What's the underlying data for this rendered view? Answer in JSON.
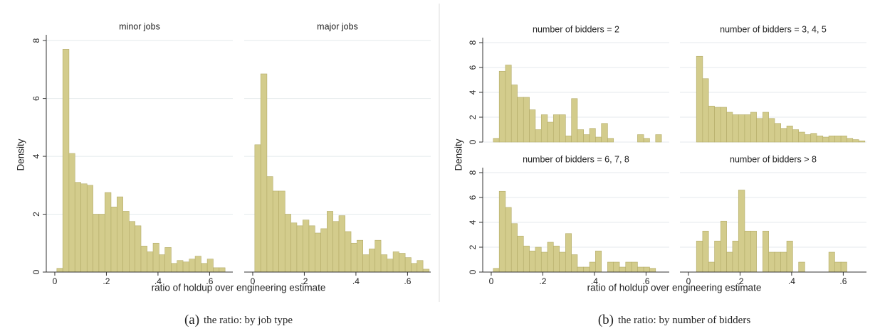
{
  "panels": [
    {
      "ylabel": "Density",
      "xlabel": "ratio of holdup over engineering estimate",
      "caption_tag": "(a)",
      "caption": "the ratio: by job type"
    },
    {
      "ylabel": "Density",
      "xlabel": "ratio of holdup over engineering estimate",
      "caption_tag": "(b)",
      "caption": "the ratio: by number of bidders"
    }
  ],
  "chart_data": [
    {
      "type": "histogram",
      "title": "minor jobs",
      "color": "#d3cc8c",
      "grid": true,
      "bins": [
        0.008,
        0.031,
        0.055,
        0.078,
        0.101,
        0.125,
        0.148,
        0.171,
        0.194,
        0.218,
        0.241,
        0.264,
        0.288,
        0.311,
        0.334,
        0.358,
        0.381,
        0.404,
        0.427,
        0.451,
        0.474,
        0.497,
        0.521,
        0.544,
        0.567,
        0.591,
        0.614,
        0.637,
        0.66
      ],
      "values": [
        0.13,
        7.7,
        4.1,
        3.1,
        3.05,
        3.0,
        2.0,
        2.0,
        2.75,
        2.25,
        2.6,
        2.1,
        1.75,
        1.6,
        0.9,
        0.7,
        1.0,
        0.6,
        0.85,
        0.3,
        0.4,
        0.35,
        0.45,
        0.55,
        0.3,
        0.45,
        0.15,
        0.15
      ],
      "xlim": [
        -0.033,
        0.69
      ],
      "ylim": [
        0,
        8.2
      ],
      "yticks": [
        0,
        2,
        4,
        6,
        8
      ],
      "xticks": [
        0,
        {
          "value": 0.2,
          "label": ".2"
        },
        {
          "value": 0.4,
          "label": ".4"
        },
        {
          "value": 0.6,
          "label": ".6"
        }
      ]
    },
    {
      "type": "histogram",
      "title": "major jobs",
      "color": "#d3cc8c",
      "grid": true,
      "bins": [
        0.008,
        0.031,
        0.055,
        0.078,
        0.101,
        0.125,
        0.148,
        0.171,
        0.194,
        0.218,
        0.241,
        0.264,
        0.288,
        0.311,
        0.334,
        0.358,
        0.381,
        0.404,
        0.427,
        0.451,
        0.474,
        0.497,
        0.521,
        0.544,
        0.567,
        0.591,
        0.614,
        0.637,
        0.66,
        0.684
      ],
      "values": [
        4.4,
        6.85,
        3.3,
        2.8,
        2.8,
        2.0,
        1.7,
        1.6,
        1.8,
        1.6,
        1.35,
        1.5,
        2.1,
        1.75,
        1.95,
        1.4,
        1.0,
        1.1,
        0.6,
        0.8,
        1.1,
        0.6,
        0.45,
        0.7,
        0.65,
        0.5,
        0.3,
        0.4,
        0.1
      ],
      "xlim": [
        -0.033,
        0.69
      ],
      "ylim": [
        0,
        8.2
      ],
      "yticks": [
        0,
        2,
        4,
        6,
        8
      ],
      "xticks": [
        0,
        {
          "value": 0.2,
          "label": ".2"
        },
        {
          "value": 0.4,
          "label": ".4"
        },
        {
          "value": 0.6,
          "label": ".6"
        }
      ]
    },
    {
      "type": "histogram",
      "title": "number of bidders = 2",
      "color": "#d3cc8c",
      "grid": true,
      "bins": [
        0.008,
        0.031,
        0.055,
        0.078,
        0.101,
        0.125,
        0.148,
        0.171,
        0.194,
        0.218,
        0.241,
        0.264,
        0.288,
        0.311,
        0.334,
        0.358,
        0.381,
        0.404,
        0.427,
        0.451,
        0.474,
        0.497,
        0.521,
        0.544,
        0.567,
        0.591,
        0.614,
        0.637,
        0.66
      ],
      "values": [
        0.3,
        5.7,
        6.2,
        4.6,
        3.6,
        3.6,
        2.6,
        1.0,
        2.2,
        1.6,
        2.2,
        2.2,
        0.5,
        3.5,
        1.0,
        0.6,
        1.1,
        0.4,
        1.5,
        0.3,
        0,
        0,
        0,
        0,
        0.6,
        0.3,
        0,
        0.6
      ],
      "xlim": [
        -0.033,
        0.69
      ],
      "ylim": [
        0,
        8.4
      ],
      "yticks": [
        0,
        2,
        4,
        6,
        8
      ]
    },
    {
      "type": "histogram",
      "title": "number of bidders = 3, 4, 5",
      "color": "#d3cc8c",
      "grid": true,
      "bins": [
        0.031,
        0.055,
        0.078,
        0.101,
        0.125,
        0.148,
        0.171,
        0.194,
        0.218,
        0.241,
        0.264,
        0.288,
        0.311,
        0.334,
        0.358,
        0.381,
        0.404,
        0.427,
        0.451,
        0.474,
        0.497,
        0.521,
        0.544,
        0.567,
        0.591,
        0.614,
        0.637,
        0.66,
        0.684
      ],
      "values": [
        6.9,
        5.1,
        2.9,
        2.8,
        2.8,
        2.4,
        2.2,
        2.2,
        2.2,
        2.4,
        1.9,
        2.4,
        1.9,
        1.5,
        1.1,
        1.3,
        1.0,
        0.8,
        0.6,
        0.7,
        0.5,
        0.4,
        0.5,
        0.5,
        0.5,
        0.3,
        0.2,
        0.1
      ],
      "xlim": [
        -0.033,
        0.69
      ],
      "ylim": [
        0,
        8.4
      ],
      "yticks": [
        0,
        2,
        4,
        6,
        8
      ]
    },
    {
      "type": "histogram",
      "title": "number of bidders = 6, 7, 8",
      "color": "#d3cc8c",
      "grid": true,
      "bins": [
        0.008,
        0.031,
        0.055,
        0.078,
        0.101,
        0.125,
        0.148,
        0.171,
        0.194,
        0.218,
        0.241,
        0.264,
        0.288,
        0.311,
        0.334,
        0.358,
        0.381,
        0.404,
        0.427,
        0.451,
        0.474,
        0.497,
        0.521,
        0.544,
        0.567,
        0.591,
        0.614,
        0.637
      ],
      "values": [
        0.3,
        6.5,
        5.2,
        3.9,
        2.9,
        2.1,
        1.7,
        2.0,
        1.6,
        2.4,
        2.1,
        1.6,
        3.1,
        1.4,
        0.4,
        0.4,
        0.8,
        1.7,
        0,
        0.8,
        0.8,
        0.4,
        0.8,
        0.8,
        0.4,
        0.4,
        0.3
      ],
      "xlim": [
        -0.033,
        0.69
      ],
      "ylim": [
        0,
        8.4
      ],
      "yticks": [
        0,
        2,
        4,
        6,
        8
      ],
      "xticks": [
        0,
        {
          "value": 0.2,
          "label": ".2"
        },
        {
          "value": 0.4,
          "label": ".4"
        },
        {
          "value": 0.6,
          "label": ".6"
        }
      ]
    },
    {
      "type": "histogram",
      "title": "number of bidders > 8",
      "color": "#d3cc8c",
      "grid": true,
      "bins": [
        0.031,
        0.055,
        0.078,
        0.101,
        0.125,
        0.148,
        0.171,
        0.194,
        0.218,
        0.241,
        0.264,
        0.288,
        0.311,
        0.334,
        0.358,
        0.381,
        0.404,
        0.427,
        0.451,
        0.474,
        0.497,
        0.521,
        0.544,
        0.567,
        0.591,
        0.614
      ],
      "values": [
        2.5,
        3.3,
        0.8,
        2.5,
        4.1,
        1.6,
        2.5,
        6.6,
        3.3,
        3.3,
        0,
        3.3,
        1.6,
        1.6,
        1.6,
        2.5,
        0,
        0.8,
        0,
        0,
        0,
        0,
        1.6,
        0.8,
        0.8
      ],
      "xlim": [
        -0.033,
        0.69
      ],
      "ylim": [
        0,
        8.4
      ],
      "yticks": [
        0,
        2,
        4,
        6,
        8
      ],
      "xticks": [
        0,
        {
          "value": 0.2,
          "label": ".2"
        },
        {
          "value": 0.4,
          "label": ".4"
        },
        {
          "value": 0.6,
          "label": ".6"
        }
      ]
    }
  ]
}
